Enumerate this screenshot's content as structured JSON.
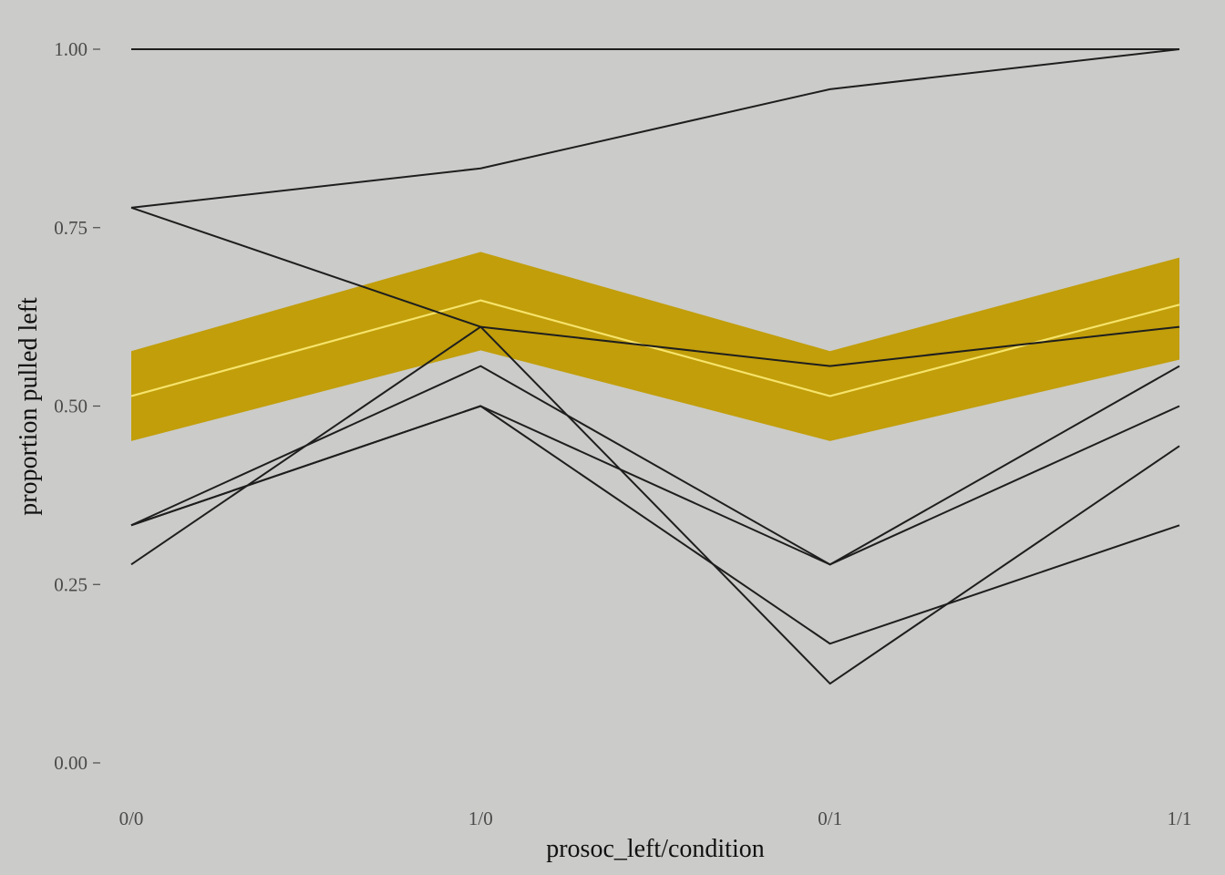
{
  "chart_data": {
    "type": "line",
    "xlabel": "prosoc_left/condition",
    "ylabel": "proportion pulled left",
    "categories": [
      "0/0",
      "1/0",
      "0/1",
      "1/1"
    ],
    "ylim": [
      0,
      1
    ],
    "yticks": [
      0,
      0.25,
      0.5,
      0.75,
      1
    ],
    "ytick_labels": [
      "0.00",
      "0.25",
      "0.50",
      "0.75",
      "1.00"
    ],
    "grid": false,
    "colors": {
      "background": "#cbcbc9",
      "band": "#c19e0a",
      "fit_line": "#f6e36a",
      "actor_lines": "#1e1e1e"
    },
    "series": [
      {
        "values": [
          1.0,
          1.0,
          1.0,
          1.0
        ]
      },
      {
        "values": [
          0.778,
          0.833,
          0.944,
          1.0
        ]
      },
      {
        "values": [
          0.778,
          0.611,
          0.556,
          0.611
        ]
      },
      {
        "values": [
          0.333,
          0.556,
          0.278,
          0.556
        ]
      },
      {
        "values": [
          0.333,
          0.5,
          0.278,
          0.5
        ]
      },
      {
        "values": [
          0.278,
          0.611,
          0.111,
          0.444
        ]
      },
      {
        "values": [
          0.333,
          0.5,
          0.167,
          0.333
        ]
      }
    ],
    "fit": {
      "mean": [
        0.514,
        0.648,
        0.514,
        0.642
      ],
      "lower": [
        0.451,
        0.578,
        0.451,
        0.565
      ],
      "upper": [
        0.577,
        0.716,
        0.577,
        0.708
      ]
    }
  }
}
